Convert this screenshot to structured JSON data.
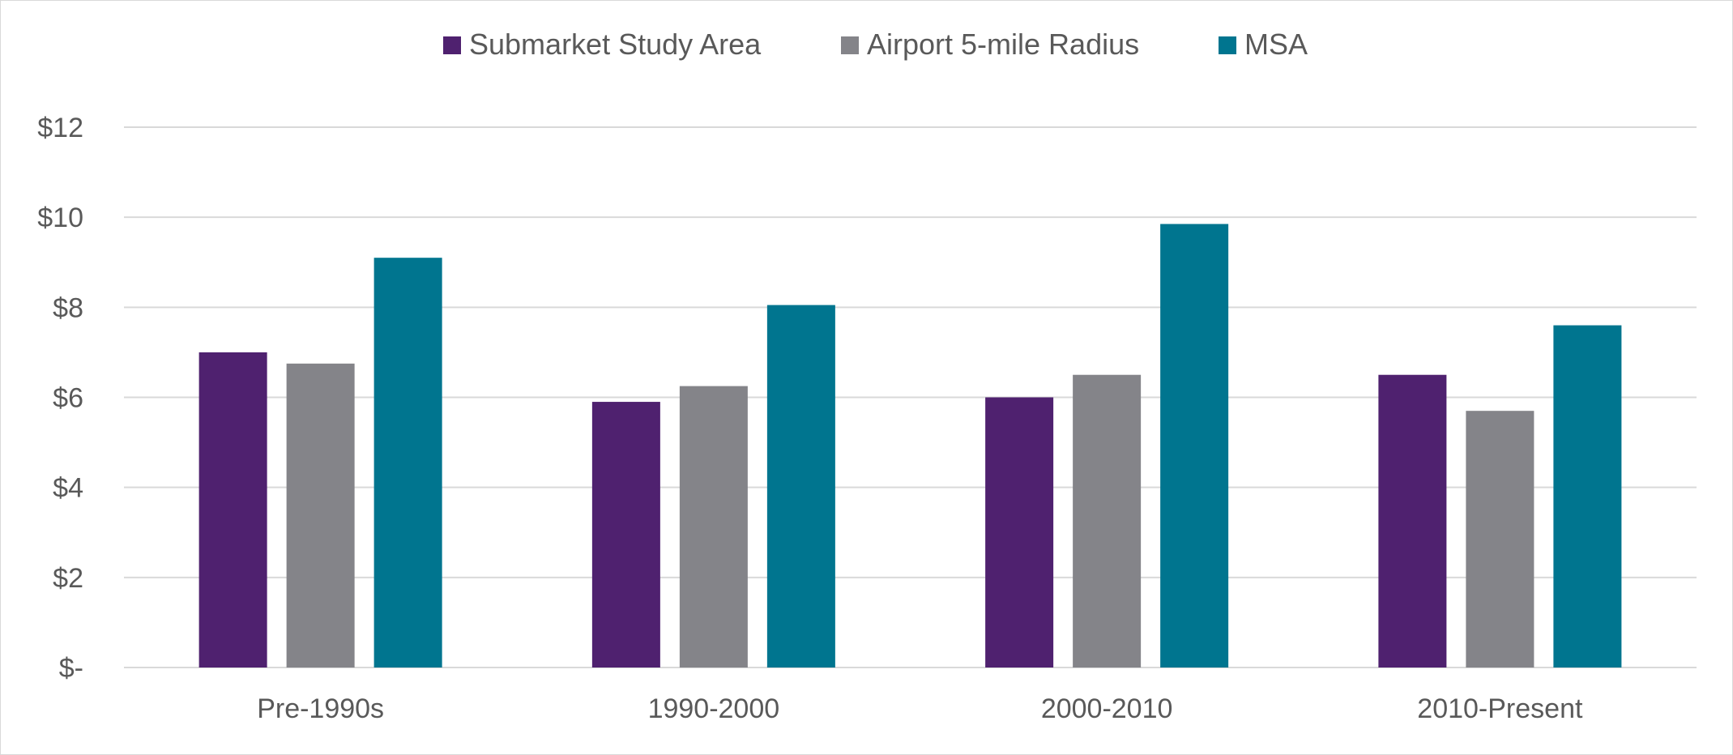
{
  "chart_data": {
    "type": "bar",
    "title": "",
    "xlabel": "",
    "ylabel": "",
    "categories": [
      "Pre-1990s",
      "1990-2000",
      "2000-2010",
      "2010-Present"
    ],
    "series": [
      {
        "name": "Submarket Study Area",
        "color": "#4f216f",
        "values": [
          7.0,
          5.9,
          6.0,
          6.5
        ]
      },
      {
        "name": "Airport 5-mile Radius",
        "color": "#848489",
        "values": [
          6.75,
          6.25,
          6.5,
          5.7
        ]
      },
      {
        "name": "MSA",
        "color": "#00758f",
        "values": [
          9.1,
          8.05,
          9.85,
          7.6
        ]
      }
    ],
    "ylim": [
      0,
      12
    ],
    "yticks": [
      0,
      2,
      4,
      6,
      8,
      10,
      12
    ],
    "ytick_labels": [
      "$-",
      "$2",
      "$4",
      "$6",
      "$8",
      "$10",
      "$12"
    ],
    "grid": true,
    "legend_position": "top-center",
    "gridline_color": "#d9d9d9",
    "text_color": "#595959"
  }
}
